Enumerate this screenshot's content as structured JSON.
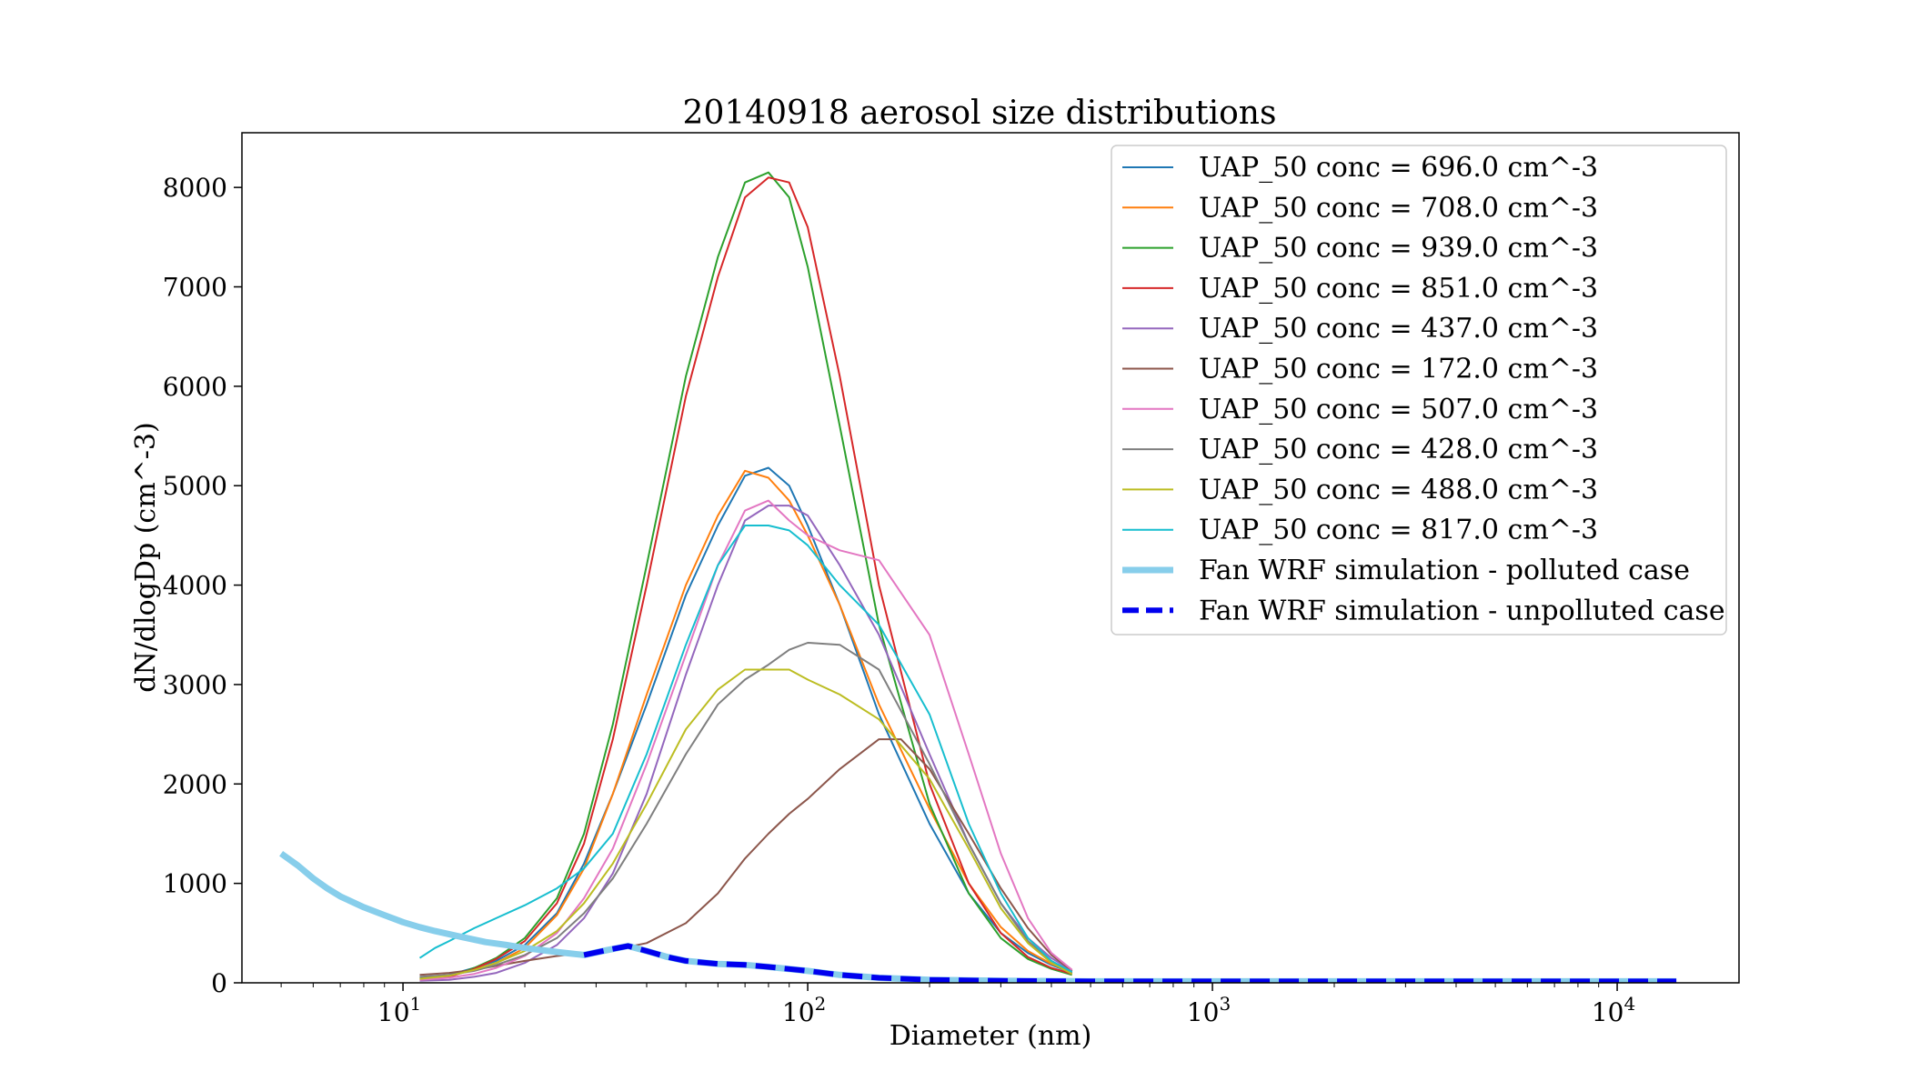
{
  "chart_data": {
    "type": "line",
    "title": "20140918 aerosol size distributions",
    "xlabel": "Diameter (nm)",
    "ylabel": "dN/dlogDp (cm^-3)",
    "xscale": "log",
    "xlim": [
      4.0,
      20000
    ],
    "ylim": [
      0,
      8550
    ],
    "x_ticks": [
      {
        "value": 10,
        "base": "10",
        "exp": "1"
      },
      {
        "value": 100,
        "base": "10",
        "exp": "2"
      },
      {
        "value": 1000,
        "base": "10",
        "exp": "3"
      },
      {
        "value": 10000,
        "base": "10",
        "exp": "4"
      }
    ],
    "y_ticks": [
      "0",
      "1000",
      "2000",
      "3000",
      "4000",
      "5000",
      "6000",
      "7000",
      "8000"
    ],
    "legend_position": "top-right",
    "grid": false,
    "series": [
      {
        "name": "UAP_50 conc = 696.0 cm^-3",
        "color": "#1f77b4",
        "style": "solid",
        "x": [
          11,
          13,
          15,
          17,
          20,
          24,
          28,
          33,
          40,
          50,
          60,
          70,
          80,
          90,
          100,
          120,
          150,
          200,
          250,
          300,
          350,
          400,
          450
        ],
        "y": [
          50,
          80,
          150,
          220,
          380,
          700,
          1200,
          1900,
          2800,
          3900,
          4600,
          5100,
          5180,
          5000,
          4600,
          3800,
          2700,
          1600,
          900,
          500,
          300,
          180,
          100
        ]
      },
      {
        "name": "UAP_50 conc = 708.0 cm^-3",
        "color": "#ff7f0e",
        "style": "solid",
        "x": [
          11,
          13,
          15,
          17,
          20,
          24,
          28,
          33,
          40,
          50,
          60,
          70,
          80,
          90,
          100,
          120,
          150,
          200,
          250,
          300,
          350,
          400,
          450
        ],
        "y": [
          40,
          70,
          130,
          200,
          350,
          680,
          1150,
          1900,
          2900,
          4000,
          4700,
          5150,
          5080,
          4850,
          4500,
          3800,
          2800,
          1750,
          1000,
          560,
          320,
          190,
          110
        ]
      },
      {
        "name": "UAP_50 conc = 939.0 cm^-3",
        "color": "#2ca02c",
        "style": "solid",
        "x": [
          11,
          13,
          15,
          17,
          20,
          24,
          28,
          33,
          40,
          50,
          60,
          70,
          80,
          90,
          100,
          120,
          150,
          200,
          250,
          300,
          350,
          400,
          450
        ],
        "y": [
          30,
          60,
          150,
          250,
          450,
          850,
          1500,
          2600,
          4200,
          6100,
          7300,
          8050,
          8150,
          7900,
          7200,
          5600,
          3600,
          1800,
          900,
          450,
          240,
          140,
          80
        ]
      },
      {
        "name": "UAP_50 conc = 851.0 cm^-3",
        "color": "#d62728",
        "style": "solid",
        "x": [
          11,
          13,
          15,
          17,
          20,
          24,
          28,
          33,
          40,
          50,
          60,
          70,
          80,
          90,
          100,
          120,
          150,
          200,
          250,
          300,
          350,
          400,
          450
        ],
        "y": [
          30,
          60,
          140,
          240,
          420,
          800,
          1400,
          2450,
          4000,
          5900,
          7100,
          7900,
          8100,
          8050,
          7600,
          6100,
          4000,
          2000,
          1000,
          500,
          260,
          150,
          90
        ]
      },
      {
        "name": "UAP_50 conc = 437.0 cm^-3",
        "color": "#9467bd",
        "style": "solid",
        "x": [
          11,
          13,
          15,
          17,
          20,
          24,
          28,
          33,
          40,
          50,
          60,
          70,
          80,
          90,
          100,
          120,
          150,
          200,
          250,
          300,
          350,
          400,
          450
        ],
        "y": [
          20,
          30,
          60,
          100,
          200,
          380,
          650,
          1100,
          1900,
          3100,
          4000,
          4650,
          4800,
          4800,
          4700,
          4200,
          3500,
          2300,
          1400,
          800,
          450,
          250,
          120
        ]
      },
      {
        "name": "UAP_50 conc = 172.0 cm^-3",
        "color": "#8c564b",
        "style": "solid",
        "x": [
          11,
          13,
          15,
          17,
          20,
          24,
          28,
          33,
          40,
          50,
          60,
          70,
          80,
          90,
          100,
          120,
          150,
          170,
          200,
          250,
          300,
          350,
          400,
          450
        ],
        "y": [
          80,
          100,
          130,
          170,
          220,
          270,
          300,
          330,
          400,
          600,
          900,
          1250,
          1500,
          1700,
          1850,
          2150,
          2450,
          2450,
          2150,
          1500,
          950,
          550,
          280,
          120
        ]
      },
      {
        "name": "UAP_50 conc = 507.0 cm^-3",
        "color": "#e377c2",
        "style": "solid",
        "x": [
          11,
          13,
          15,
          17,
          20,
          24,
          28,
          33,
          40,
          50,
          60,
          70,
          80,
          90,
          100,
          120,
          150,
          200,
          250,
          300,
          350,
          400,
          450
        ],
        "y": [
          30,
          50,
          90,
          150,
          270,
          500,
          850,
          1350,
          2200,
          3300,
          4200,
          4750,
          4850,
          4650,
          4500,
          4350,
          4250,
          3500,
          2300,
          1300,
          650,
          300,
          130
        ]
      },
      {
        "name": "UAP_50 conc = 428.0 cm^-3",
        "color": "#7f7f7f",
        "style": "solid",
        "x": [
          11,
          13,
          15,
          17,
          20,
          24,
          28,
          33,
          40,
          50,
          60,
          70,
          80,
          90,
          100,
          120,
          150,
          200,
          250,
          300,
          350,
          400,
          450
        ],
        "y": [
          60,
          80,
          120,
          180,
          280,
          450,
          700,
          1050,
          1600,
          2300,
          2800,
          3050,
          3200,
          3350,
          3420,
          3400,
          3150,
          2200,
          1400,
          800,
          420,
          220,
          100
        ]
      },
      {
        "name": "UAP_50 conc = 488.0 cm^-3",
        "color": "#bcbd22",
        "style": "solid",
        "x": [
          11,
          13,
          15,
          17,
          20,
          24,
          28,
          33,
          40,
          50,
          60,
          70,
          80,
          90,
          100,
          120,
          150,
          200,
          250,
          300,
          350,
          400,
          450
        ],
        "y": [
          40,
          70,
          130,
          200,
          320,
          520,
          800,
          1200,
          1800,
          2550,
          2950,
          3150,
          3150,
          3150,
          3050,
          2900,
          2650,
          2050,
          1350,
          750,
          400,
          200,
          90
        ]
      },
      {
        "name": "UAP_50 conc = 817.0 cm^-3",
        "color": "#17becf",
        "style": "solid",
        "x": [
          11,
          12,
          13,
          15,
          17,
          20,
          24,
          28,
          33,
          40,
          50,
          60,
          70,
          80,
          90,
          100,
          120,
          150,
          200,
          250,
          300,
          350,
          400,
          450
        ],
        "y": [
          250,
          350,
          420,
          550,
          650,
          780,
          950,
          1150,
          1500,
          2300,
          3400,
          4200,
          4600,
          4600,
          4550,
          4400,
          4000,
          3600,
          2700,
          1600,
          900,
          450,
          220,
          110
        ]
      },
      {
        "name": "Fan WRF simulation - polluted case",
        "color": "#87ceeb",
        "style": "thick",
        "x": [
          5,
          5.5,
          6,
          6.5,
          7,
          8,
          9,
          10,
          11,
          12,
          14,
          16,
          18,
          20,
          24,
          28,
          32,
          36,
          40,
          45,
          50,
          60,
          70,
          80,
          100,
          120,
          150,
          200,
          300,
          500,
          1000,
          2000,
          5000,
          10000,
          14000
        ],
        "y": [
          1300,
          1180,
          1050,
          950,
          870,
          760,
          680,
          610,
          560,
          520,
          460,
          410,
          380,
          350,
          310,
          280,
          330,
          370,
          320,
          260,
          220,
          190,
          180,
          160,
          120,
          80,
          50,
          30,
          20,
          15,
          15,
          15,
          15,
          15,
          15
        ]
      },
      {
        "name": "Fan WRF simulation - unpolluted case",
        "color": "#0000ee",
        "style": "dashed",
        "x": [
          28,
          32,
          36,
          40,
          45,
          50,
          60,
          70,
          80,
          100,
          120,
          150,
          200,
          300,
          500,
          1000,
          2000,
          5000,
          10000,
          14000
        ],
        "y": [
          280,
          330,
          370,
          320,
          260,
          220,
          190,
          180,
          160,
          120,
          80,
          50,
          30,
          20,
          15,
          15,
          15,
          15,
          15,
          15
        ]
      }
    ]
  }
}
